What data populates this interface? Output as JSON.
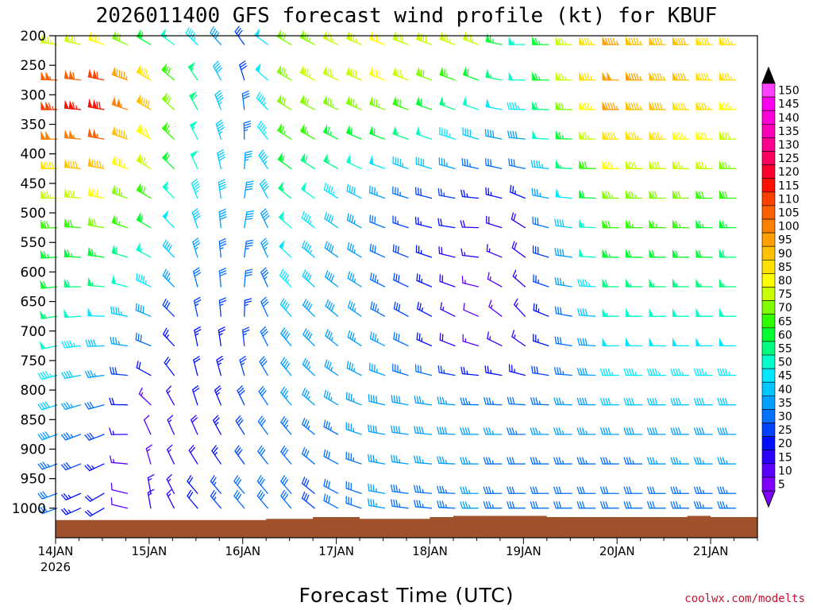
{
  "chart_data": {
    "type": "wind_barb_time_height",
    "title": "2026011400 GFS forecast wind profile (kt) for KBUF",
    "xlabel": "Forecast Time (UTC)",
    "credit": "coolwx.com/modelts",
    "units": "kt",
    "init_time": "2026011400",
    "xlim_hours": [
      0,
      180
    ],
    "x_ticks": [
      {
        "label": "14JAN",
        "sublabel": "2026",
        "hour": 0
      },
      {
        "label": "15JAN",
        "sublabel": "",
        "hour": 24
      },
      {
        "label": "16JAN",
        "sublabel": "",
        "hour": 48
      },
      {
        "label": "17JAN",
        "sublabel": "",
        "hour": 72
      },
      {
        "label": "18JAN",
        "sublabel": "",
        "hour": 96
      },
      {
        "label": "19JAN",
        "sublabel": "",
        "hour": 120
      },
      {
        "label": "20JAN",
        "sublabel": "",
        "hour": 144
      },
      {
        "label": "21JAN",
        "sublabel": "",
        "hour": 168
      }
    ],
    "ylim_hpa": [
      200,
      1050
    ],
    "y_ticks": [
      200,
      250,
      300,
      350,
      400,
      450,
      500,
      550,
      600,
      650,
      700,
      750,
      800,
      850,
      900,
      950,
      1000
    ],
    "colorbar": {
      "levels": [
        5,
        10,
        15,
        20,
        25,
        30,
        35,
        40,
        45,
        50,
        55,
        60,
        65,
        70,
        75,
        80,
        85,
        90,
        95,
        100,
        105,
        110,
        115,
        120,
        125,
        130,
        135,
        140,
        145,
        150
      ],
      "colors": [
        "#8000ff",
        "#5a00ff",
        "#2a00ff",
        "#0010ff",
        "#0040ff",
        "#0070ff",
        "#00a0ff",
        "#00c8ff",
        "#00e8ff",
        "#00ffcc",
        "#00ff80",
        "#00ff30",
        "#30ff00",
        "#80ff00",
        "#c8ff00",
        "#ffff00",
        "#ffe000",
        "#ffc000",
        "#ffa000",
        "#ff8000",
        "#ff6000",
        "#ff4000",
        "#ff1000",
        "#ff0030",
        "#ff0060",
        "#ff0090",
        "#ff00b8",
        "#ff00d8",
        "#ff00f0",
        "#ff40ff"
      ]
    },
    "terrain_color": "#a0522d",
    "surface_pressure_hpa": [
      {
        "hour": 0,
        "p": 1020
      },
      {
        "hour": 30,
        "p": 1020
      },
      {
        "hour": 54,
        "p": 1018
      },
      {
        "hour": 66,
        "p": 1015
      },
      {
        "hour": 78,
        "p": 1018
      },
      {
        "hour": 96,
        "p": 1015
      },
      {
        "hour": 102,
        "p": 1013
      },
      {
        "hour": 114,
        "p": 1013
      },
      {
        "hour": 126,
        "p": 1015
      },
      {
        "hour": 150,
        "p": 1015
      },
      {
        "hour": 162,
        "p": 1013
      },
      {
        "hour": 168,
        "p": 1015
      },
      {
        "hour": 180,
        "p": 1015
      }
    ],
    "wind_profile_keyframes": [
      {
        "hour": 0,
        "levels": [
          {
            "p": 200,
            "spd": 70,
            "dir": 280
          },
          {
            "p": 300,
            "spd": 120,
            "dir": 270
          },
          {
            "p": 500,
            "spd": 70,
            "dir": 270
          },
          {
            "p": 700,
            "spd": 55,
            "dir": 260
          },
          {
            "p": 850,
            "spd": 40,
            "dir": 250
          },
          {
            "p": 975,
            "spd": 30,
            "dir": 250
          }
        ]
      },
      {
        "hour": 12,
        "levels": [
          {
            "p": 200,
            "spd": 75,
            "dir": 290
          },
          {
            "p": 300,
            "spd": 125,
            "dir": 280
          },
          {
            "p": 500,
            "spd": 75,
            "dir": 280
          },
          {
            "p": 700,
            "spd": 45,
            "dir": 270
          },
          {
            "p": 850,
            "spd": 30,
            "dir": 250
          },
          {
            "p": 975,
            "spd": 20,
            "dir": 240
          }
        ]
      },
      {
        "hour": 24,
        "levels": [
          {
            "p": 200,
            "spd": 55,
            "dir": 300
          },
          {
            "p": 300,
            "spd": 95,
            "dir": 300
          },
          {
            "p": 500,
            "spd": 65,
            "dir": 300
          },
          {
            "p": 700,
            "spd": 35,
            "dir": 290
          },
          {
            "p": 850,
            "spd": 10,
            "dir": 330
          },
          {
            "p": 975,
            "spd": 15,
            "dir": 350
          }
        ]
      },
      {
        "hour": 36,
        "levels": [
          {
            "p": 200,
            "spd": 45,
            "dir": 310
          },
          {
            "p": 300,
            "spd": 60,
            "dir": 330
          },
          {
            "p": 500,
            "spd": 45,
            "dir": 340
          },
          {
            "p": 700,
            "spd": 25,
            "dir": 350
          },
          {
            "p": 850,
            "spd": 20,
            "dir": 340
          },
          {
            "p": 975,
            "spd": 20,
            "dir": 320
          }
        ]
      },
      {
        "hour": 48,
        "levels": [
          {
            "p": 200,
            "spd": 30,
            "dir": 320
          },
          {
            "p": 300,
            "spd": 30,
            "dir": 350
          },
          {
            "p": 500,
            "spd": 40,
            "dir": 10
          },
          {
            "p": 700,
            "spd": 25,
            "dir": 0
          },
          {
            "p": 850,
            "spd": 30,
            "dir": 330
          },
          {
            "p": 975,
            "spd": 30,
            "dir": 320
          }
        ]
      },
      {
        "hour": 60,
        "levels": [
          {
            "p": 200,
            "spd": 70,
            "dir": 300
          },
          {
            "p": 300,
            "spd": 75,
            "dir": 300
          },
          {
            "p": 500,
            "spd": 55,
            "dir": 310
          },
          {
            "p": 700,
            "spd": 40,
            "dir": 320
          },
          {
            "p": 850,
            "spd": 35,
            "dir": 320
          },
          {
            "p": 975,
            "spd": 30,
            "dir": 320
          }
        ]
      },
      {
        "hour": 84,
        "levels": [
          {
            "p": 200,
            "spd": 80,
            "dir": 290
          },
          {
            "p": 300,
            "spd": 80,
            "dir": 290
          },
          {
            "p": 500,
            "spd": 30,
            "dir": 290
          },
          {
            "p": 700,
            "spd": 35,
            "dir": 300
          },
          {
            "p": 850,
            "spd": 40,
            "dir": 280
          },
          {
            "p": 975,
            "spd": 35,
            "dir": 280
          }
        ]
      },
      {
        "hour": 108,
        "levels": [
          {
            "p": 200,
            "spd": 80,
            "dir": 290
          },
          {
            "p": 300,
            "spd": 55,
            "dir": 290
          },
          {
            "p": 500,
            "spd": 20,
            "dir": 270
          },
          {
            "p": 700,
            "spd": 10,
            "dir": 300
          },
          {
            "p": 850,
            "spd": 40,
            "dir": 270
          },
          {
            "p": 975,
            "spd": 35,
            "dir": 270
          }
        ]
      },
      {
        "hour": 120,
        "levels": [
          {
            "p": 200,
            "spd": 55,
            "dir": 270
          },
          {
            "p": 300,
            "spd": 50,
            "dir": 270
          },
          {
            "p": 500,
            "spd": 20,
            "dir": 300
          },
          {
            "p": 700,
            "spd": 15,
            "dir": 320
          },
          {
            "p": 850,
            "spd": 35,
            "dir": 270
          },
          {
            "p": 975,
            "spd": 30,
            "dir": 270
          }
        ]
      },
      {
        "hour": 144,
        "levels": [
          {
            "p": 200,
            "spd": 95,
            "dir": 270
          },
          {
            "p": 300,
            "spd": 100,
            "dir": 270
          },
          {
            "p": 500,
            "spd": 70,
            "dir": 270
          },
          {
            "p": 700,
            "spd": 50,
            "dir": 270
          },
          {
            "p": 850,
            "spd": 40,
            "dir": 270
          },
          {
            "p": 975,
            "spd": 30,
            "dir": 270
          }
        ]
      },
      {
        "hour": 180,
        "levels": [
          {
            "p": 200,
            "spd": 85,
            "dir": 270
          },
          {
            "p": 300,
            "spd": 85,
            "dir": 270
          },
          {
            "p": 500,
            "spd": 65,
            "dir": 270
          },
          {
            "p": 700,
            "spd": 50,
            "dir": 270
          },
          {
            "p": 850,
            "spd": 40,
            "dir": 270
          },
          {
            "p": 975,
            "spd": 35,
            "dir": 270
          }
        ]
      }
    ],
    "barb_time_step_hours": 6,
    "barb_pressure_levels": [
      {
        "p": 215,
        "upper": true
      },
      {
        "p": 275,
        "upper": true
      },
      {
        "p": 325,
        "upper": true
      },
      {
        "p": 375,
        "upper": true
      },
      {
        "p": 425,
        "upper": true
      },
      {
        "p": 475,
        "upper": false
      },
      {
        "p": 525,
        "upper": false
      },
      {
        "p": 575,
        "upper": false
      },
      {
        "p": 625,
        "upper": false
      },
      {
        "p": 675,
        "upper": false
      },
      {
        "p": 725,
        "upper": false
      },
      {
        "p": 775,
        "upper": false
      },
      {
        "p": 825,
        "upper": false
      },
      {
        "p": 875,
        "upper": false
      },
      {
        "p": 925,
        "upper": false
      },
      {
        "p": 975,
        "upper": false
      },
      {
        "p": 1000,
        "upper": false
      }
    ]
  }
}
